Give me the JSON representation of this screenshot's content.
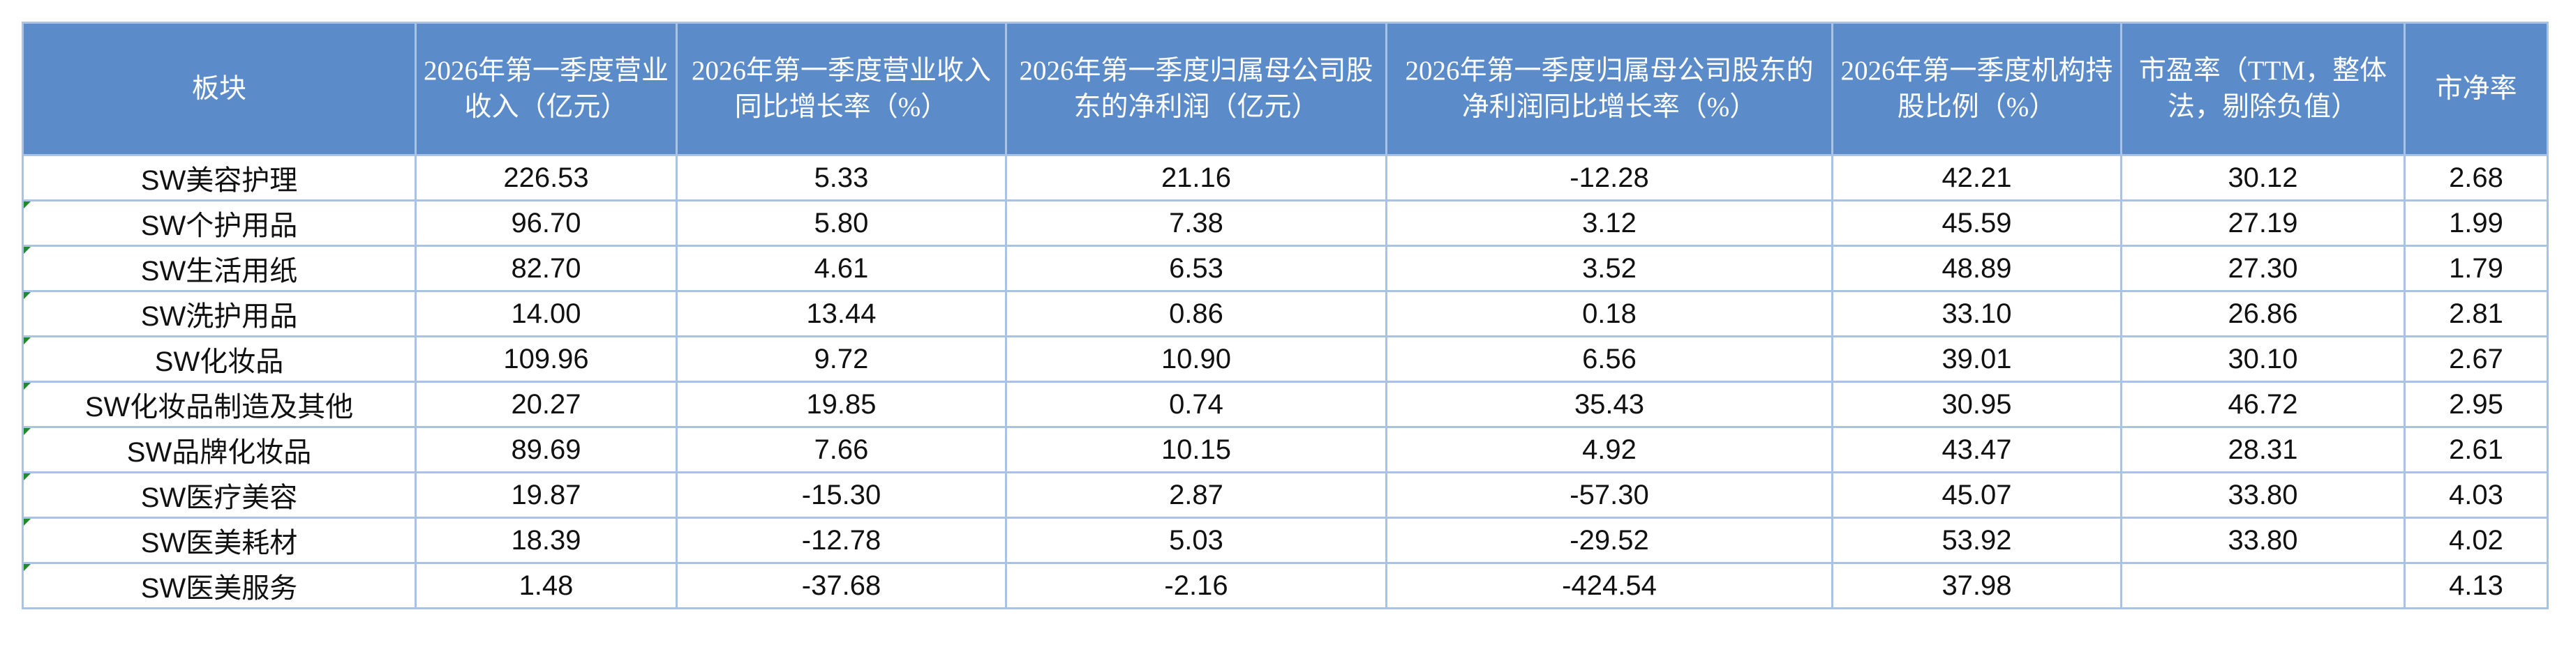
{
  "table": {
    "headers": [
      "板块",
      "2026年第一季度营业收入（亿元）",
      "2026年第一季度营业收入同比增长率（%）",
      "2026年第一季度归属母公司股东的净利润（亿元）",
      "2026年第一季度归属母公司股东的净利润同比增长率（%）",
      "2026年第一季度机构持股比例（%）",
      "市盈率（TTM，整体法，剔除负值）",
      "市净率"
    ],
    "rows": [
      [
        "SW美容护理",
        "226.53",
        "5.33",
        "21.16",
        "-12.28",
        "42.21",
        "30.12",
        "2.68"
      ],
      [
        "SW个护用品",
        "96.70",
        "5.80",
        "7.38",
        "3.12",
        "45.59",
        "27.19",
        "1.99"
      ],
      [
        "SW生活用纸",
        "82.70",
        "4.61",
        "6.53",
        "3.52",
        "48.89",
        "27.30",
        "1.79"
      ],
      [
        "SW洗护用品",
        "14.00",
        "13.44",
        "0.86",
        "0.18",
        "33.10",
        "26.86",
        "2.81"
      ],
      [
        "SW化妆品",
        "109.96",
        "9.72",
        "10.90",
        "6.56",
        "39.01",
        "30.10",
        "2.67"
      ],
      [
        "SW化妆品制造及其他",
        "20.27",
        "19.85",
        "0.74",
        "35.43",
        "30.95",
        "46.72",
        "2.95"
      ],
      [
        "SW品牌化妆品",
        "89.69",
        "7.66",
        "10.15",
        "4.92",
        "43.47",
        "28.31",
        "2.61"
      ],
      [
        "SW医疗美容",
        "19.87",
        "-15.30",
        "2.87",
        "-57.30",
        "45.07",
        "33.80",
        "4.03"
      ],
      [
        "SW医美耗材",
        "18.39",
        "-12.78",
        "5.03",
        "-29.52",
        "53.92",
        "33.80",
        "4.02"
      ],
      [
        "SW医美服务",
        "1.48",
        "-37.68",
        "-2.16",
        "-424.54",
        "37.98",
        null,
        "4.13"
      ]
    ]
  }
}
